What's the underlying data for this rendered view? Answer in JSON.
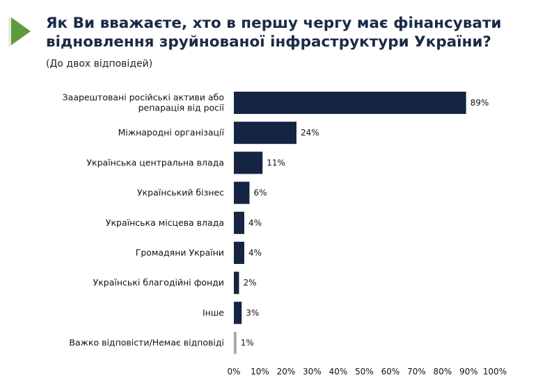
{
  "header": {
    "title_line1": "Як Ви вважаєте, хто в першу чергу має фінансувати",
    "title_line2": "відновлення зруйнованої інфраструктури України?",
    "subtitle": "(До двох відповідей)"
  },
  "colors": {
    "bar": "#142442",
    "bar_muted": "#a6a6a6",
    "accent": "#5f9a3d"
  },
  "chart_data": {
    "type": "bar",
    "orientation": "horizontal",
    "categories": [
      [
        "Заарештовані російські активи або",
        "репарація від росії"
      ],
      [
        "Міжнародні організації"
      ],
      [
        "Українська центральна влада"
      ],
      [
        "Український бізнес"
      ],
      [
        "Українська місцева влада"
      ],
      [
        "Громадяни України"
      ],
      [
        "Українські благодійні фонди"
      ],
      [
        "Інше"
      ],
      [
        "Важко відповісти/Немає відповіді"
      ]
    ],
    "values": [
      89,
      24,
      11,
      6,
      4,
      4,
      2,
      3,
      1
    ],
    "value_labels": [
      "89%",
      "24%",
      "11%",
      "6%",
      "4%",
      "4%",
      "2%",
      "3%",
      "1%"
    ],
    "muted": [
      false,
      false,
      false,
      false,
      false,
      false,
      false,
      false,
      true
    ],
    "xlim": [
      0,
      100
    ],
    "xticks": [
      "0%",
      "10%",
      "20%",
      "30%",
      "40%",
      "50%",
      "60%",
      "70%",
      "80%",
      "90%",
      "100%"
    ],
    "grid": false
  }
}
